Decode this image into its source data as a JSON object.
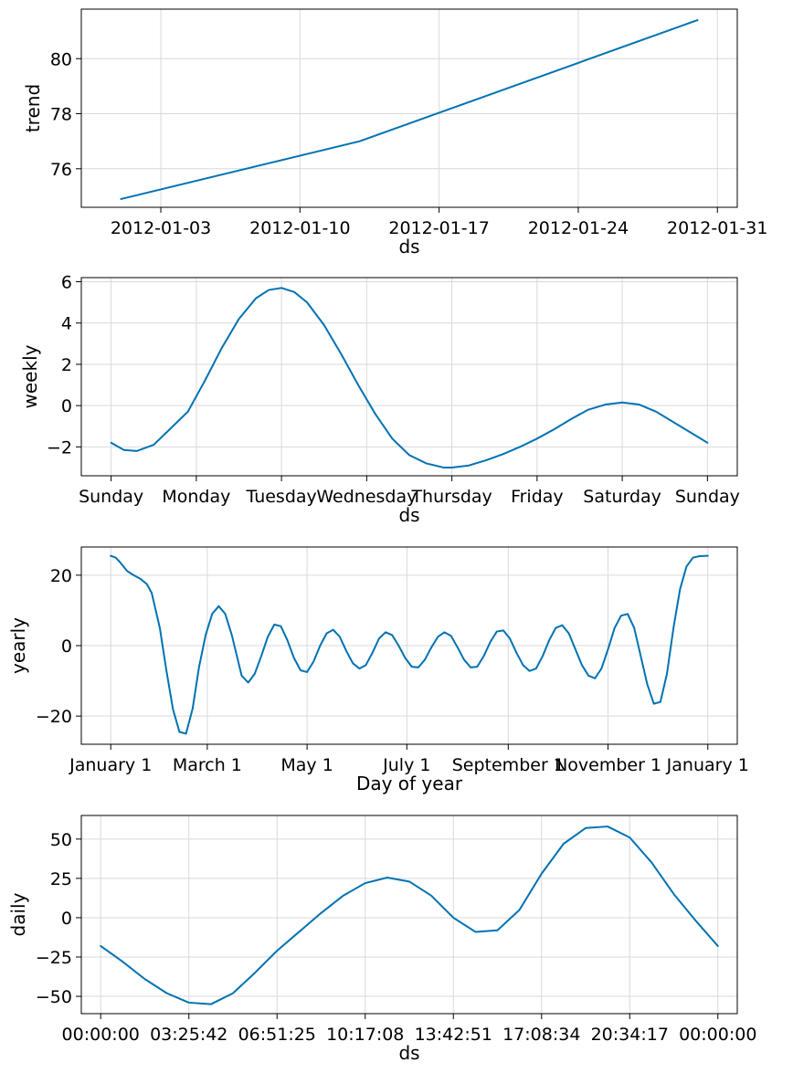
{
  "line_color": "#0072B2",
  "chart_data": [
    {
      "type": "line",
      "xlabel": "ds",
      "ylabel": "trend",
      "x_type": "date",
      "xlim": [
        "2011-12-30",
        "2012-02-01"
      ],
      "ylim": [
        74.6,
        81.8
      ],
      "x_ticks": [
        "2012-01-03",
        "2012-01-10",
        "2012-01-17",
        "2012-01-24",
        "2012-01-31"
      ],
      "x_tick_labels": [
        "2012-01-03",
        "2012-01-10",
        "2012-01-17",
        "2012-01-24",
        "2012-01-31"
      ],
      "y_ticks": [
        76,
        78,
        80
      ],
      "y_tick_labels": [
        "76",
        "78",
        "80"
      ],
      "grid": true,
      "series": [
        {
          "x": [
            "2012-01-01",
            "2012-01-13",
            "2012-01-30"
          ],
          "y": [
            74.9,
            77.0,
            81.4
          ]
        }
      ]
    },
    {
      "type": "line",
      "xlabel": "ds",
      "ylabel": "weekly",
      "xlim": [
        -0.35,
        7.35
      ],
      "ylim": [
        -3.4,
        6.2
      ],
      "x_ticks": [
        0,
        1,
        2,
        3,
        4,
        5,
        6,
        7
      ],
      "x_tick_labels": [
        "Sunday",
        "Monday",
        "Tuesday",
        "Wednesday",
        "Thursday",
        "Friday",
        "Saturday",
        "Sunday"
      ],
      "y_ticks": [
        -2,
        0,
        2,
        4,
        6
      ],
      "y_tick_labels": [
        "−2",
        "0",
        "2",
        "4",
        "6"
      ],
      "grid": true,
      "series": [
        {
          "x": [
            0,
            0.15,
            0.3,
            0.5,
            0.7,
            0.9,
            1.1,
            1.3,
            1.5,
            1.7,
            1.85,
            2.0,
            2.15,
            2.3,
            2.5,
            2.7,
            2.9,
            3.1,
            3.3,
            3.5,
            3.7,
            3.9,
            4.0,
            4.2,
            4.4,
            4.6,
            4.8,
            5.0,
            5.2,
            5.4,
            5.6,
            5.8,
            6.0,
            6.2,
            6.4,
            6.6,
            6.8,
            7.0
          ],
          "y": [
            -1.8,
            -2.15,
            -2.2,
            -1.9,
            -1.1,
            -0.3,
            1.2,
            2.8,
            4.2,
            5.2,
            5.6,
            5.7,
            5.5,
            5.0,
            3.9,
            2.5,
            1.0,
            -0.4,
            -1.6,
            -2.4,
            -2.8,
            -3.0,
            -3.0,
            -2.9,
            -2.65,
            -2.35,
            -2.0,
            -1.6,
            -1.15,
            -0.65,
            -0.2,
            0.05,
            0.15,
            0.05,
            -0.3,
            -0.8,
            -1.3,
            -1.8
          ]
        }
      ]
    },
    {
      "type": "line",
      "xlabel": "Day of year",
      "ylabel": "yearly",
      "xlim": [
        -18,
        383
      ],
      "ylim": [
        -28,
        28
      ],
      "x_ticks": [
        0,
        59,
        120,
        181,
        243,
        304,
        365
      ],
      "x_tick_labels": [
        "January 1",
        "March 1",
        "May 1",
        "July 1",
        "September 1",
        "November 1",
        "January 1"
      ],
      "y_ticks": [
        -20,
        0,
        20
      ],
      "y_tick_labels": [
        "−20",
        "0",
        "20"
      ],
      "grid": true,
      "series": [
        {
          "x": [
            0,
            3,
            6,
            10,
            14,
            18,
            22,
            25,
            30,
            34,
            38,
            42,
            46,
            50,
            54,
            58,
            62,
            66,
            70,
            74,
            80,
            84,
            88,
            92,
            96,
            100,
            104,
            108,
            112,
            116,
            120,
            124,
            128,
            132,
            136,
            140,
            144,
            148,
            152,
            156,
            160,
            164,
            168,
            172,
            176,
            180,
            184,
            188,
            192,
            196,
            200,
            204,
            208,
            212,
            216,
            220,
            224,
            228,
            232,
            236,
            240,
            244,
            248,
            252,
            256,
            260,
            264,
            268,
            272,
            276,
            280,
            284,
            288,
            292,
            296,
            300,
            304,
            308,
            312,
            316,
            320,
            324,
            328,
            332,
            336,
            340,
            344,
            348,
            352,
            356,
            360,
            365
          ],
          "y": [
            25.5,
            25.0,
            23.5,
            21.2,
            20.0,
            19.0,
            17.5,
            15.0,
            5.0,
            -7.0,
            -18.0,
            -24.5,
            -25.0,
            -18.0,
            -6.0,
            3.0,
            9.0,
            11.2,
            9.0,
            3.0,
            -8.5,
            -10.5,
            -8.0,
            -3.0,
            2.5,
            6.0,
            5.5,
            1.5,
            -3.5,
            -7.0,
            -7.5,
            -4.5,
            0.0,
            3.5,
            4.5,
            2.5,
            -1.5,
            -5.0,
            -6.5,
            -5.5,
            -2.0,
            2.0,
            3.8,
            3.0,
            0.0,
            -3.5,
            -6.0,
            -6.2,
            -4.0,
            -0.5,
            2.5,
            3.8,
            2.8,
            -0.5,
            -4.0,
            -6.2,
            -6.0,
            -3.0,
            1.0,
            4.0,
            4.3,
            2.0,
            -2.0,
            -5.5,
            -7.2,
            -6.5,
            -3.0,
            1.5,
            5.0,
            5.8,
            3.5,
            -1.0,
            -5.5,
            -8.5,
            -9.3,
            -6.5,
            -1.0,
            5.0,
            8.5,
            9.0,
            5.0,
            -3.0,
            -11.0,
            -16.5,
            -16.0,
            -8.0,
            5.0,
            16.0,
            22.5,
            25.0,
            25.4,
            25.5
          ]
        }
      ]
    },
    {
      "type": "line",
      "xlabel": "ds",
      "ylabel": "daily",
      "xlim": [
        -0.22,
        7.22
      ],
      "ylim": [
        -61,
        65
      ],
      "x_ticks": [
        0,
        1,
        2,
        3,
        4,
        5,
        6,
        7
      ],
      "x_tick_labels": [
        "00:00:00",
        "03:25:42",
        "06:51:25",
        "10:17:08",
        "13:42:51",
        "17:08:34",
        "20:34:17",
        "00:00:00"
      ],
      "y_ticks": [
        -50,
        -25,
        0,
        25,
        50
      ],
      "y_tick_labels": [
        "−50",
        "−25",
        "0",
        "25",
        "50"
      ],
      "grid": true,
      "series": [
        {
          "x": [
            0,
            0.25,
            0.5,
            0.75,
            1.0,
            1.25,
            1.5,
            1.75,
            2.0,
            2.25,
            2.5,
            2.75,
            3.0,
            3.25,
            3.5,
            3.75,
            4.0,
            4.25,
            4.5,
            4.75,
            5.0,
            5.25,
            5.5,
            5.75,
            6.0,
            6.25,
            6.5,
            6.75,
            7.0
          ],
          "y": [
            -18.0,
            -28.0,
            -39.0,
            -48.0,
            -54.0,
            -55.0,
            -48.0,
            -35.0,
            -21.0,
            -9.0,
            3.0,
            14.0,
            22.0,
            25.5,
            23.0,
            14.0,
            0.0,
            -9.0,
            -8.0,
            5.0,
            28.0,
            47.0,
            57.0,
            58.0,
            51.0,
            35.0,
            15.0,
            -2.0,
            -18.0
          ]
        }
      ]
    }
  ]
}
